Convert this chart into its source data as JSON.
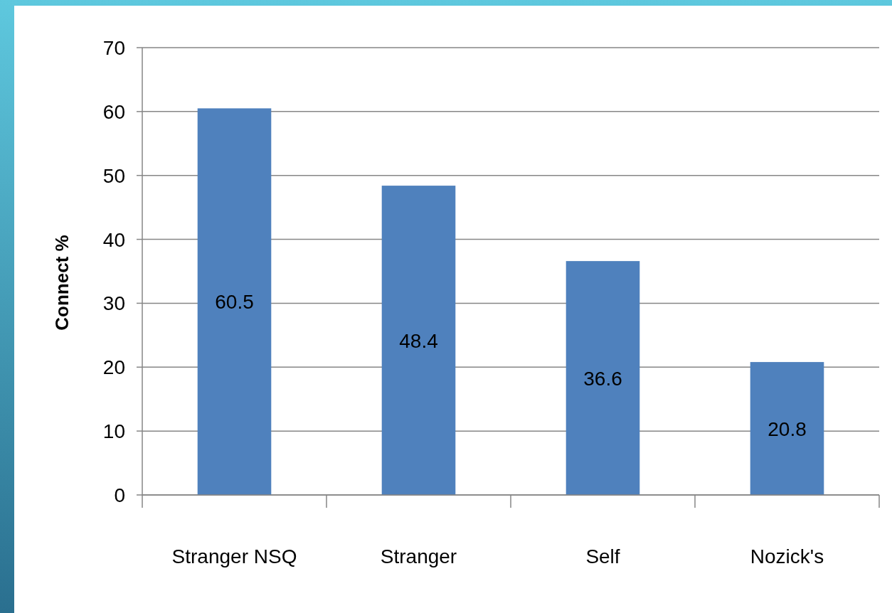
{
  "chart_data": {
    "type": "bar",
    "ylabel": "Connect %",
    "categories": [
      "Stranger NSQ",
      "Stranger",
      "Self",
      "Nozick's"
    ],
    "values": [
      60.5,
      48.4,
      36.6,
      20.8
    ],
    "color": "#4f81bd",
    "ylim": [
      0,
      70
    ],
    "yticks": [
      0,
      10,
      20,
      30,
      40,
      50,
      60,
      70
    ],
    "grid": "y",
    "data_labels": true
  }
}
